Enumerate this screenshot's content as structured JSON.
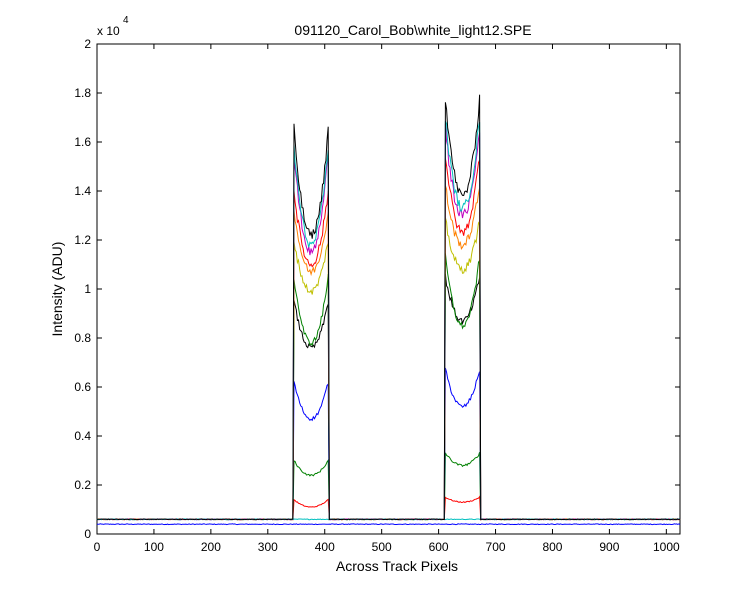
{
  "chart_data": {
    "type": "line",
    "title": "091120_Carol_Bob\\white_light12.SPE",
    "xlabel": "Across Track Pixels",
    "ylabel": "Intensity (ADU)",
    "xlim": [
      0,
      1024
    ],
    "ylim": [
      0,
      20000
    ],
    "y_multiplier_label": "x 10",
    "y_multiplier_exponent": "4",
    "x_ticks": [
      0,
      100,
      200,
      300,
      400,
      500,
      600,
      700,
      800,
      900,
      1000
    ],
    "x_tick_labels": [
      "0",
      "100",
      "200",
      "300",
      "400",
      "500",
      "600",
      "700",
      "800",
      "900",
      "1000"
    ],
    "y_ticks": [
      0,
      2000,
      4000,
      6000,
      8000,
      10000,
      12000,
      14000,
      16000,
      18000,
      20000
    ],
    "y_tick_labels": [
      "0",
      "0.2",
      "0.4",
      "0.6",
      "0.8",
      "1",
      "1.2",
      "1.4",
      "1.6",
      "1.8",
      "2"
    ],
    "grid": false,
    "legend": "none",
    "peak_windows": [
      {
        "start": 346,
        "end": 406
      },
      {
        "start": 612,
        "end": 672
      }
    ],
    "series": [
      {
        "color": "#0000ff",
        "baseline": 400,
        "edge1": 600,
        "min1": 600,
        "edge2": 700,
        "min2": 700,
        "no_peaks": true
      },
      {
        "color": "#00bfbf",
        "baseline": 600,
        "edge1": 600,
        "min1": 600,
        "edge2": 600,
        "min2": 600,
        "no_peaks": true
      },
      {
        "color": "#ff0000",
        "baseline": 600,
        "edge1": 1400,
        "min1": 1100,
        "edge2": 1500,
        "min2": 1300
      },
      {
        "color": "#008000",
        "baseline": 600,
        "edge1": 3000,
        "min1": 2400,
        "edge2": 3300,
        "min2": 2800
      },
      {
        "color": "#0000ff",
        "baseline": 600,
        "edge1": 6200,
        "min1": 4700,
        "edge2": 6700,
        "min2": 5200
      },
      {
        "color": "#000000",
        "baseline": 600,
        "edge1": 9500,
        "min1": 7600,
        "edge2": 10500,
        "min2": 8700
      },
      {
        "color": "#008000",
        "baseline": 600,
        "edge1": 10500,
        "min1": 7800,
        "edge2": 11300,
        "min2": 8500
      },
      {
        "color": "#bfbf00",
        "baseline": 600,
        "edge1": 12000,
        "min1": 9900,
        "edge2": 12800,
        "min2": 10800
      },
      {
        "color": "#ff8000",
        "baseline": 600,
        "edge1": 13200,
        "min1": 10700,
        "edge2": 14200,
        "min2": 11800
      },
      {
        "color": "#ff0000",
        "baseline": 600,
        "edge1": 14000,
        "min1": 11000,
        "edge2": 15500,
        "min2": 12300
      },
      {
        "color": "#bf00bf",
        "baseline": 600,
        "edge1": 15500,
        "min1": 11500,
        "edge2": 16500,
        "min2": 13000
      },
      {
        "color": "#00bfbf",
        "baseline": 600,
        "edge1": 15800,
        "min1": 11800,
        "edge2": 17000,
        "min2": 13300
      },
      {
        "color": "#000000",
        "baseline": 600,
        "edge1": 16500,
        "min1": 12200,
        "edge2": 17800,
        "min2": 13800
      }
    ]
  }
}
